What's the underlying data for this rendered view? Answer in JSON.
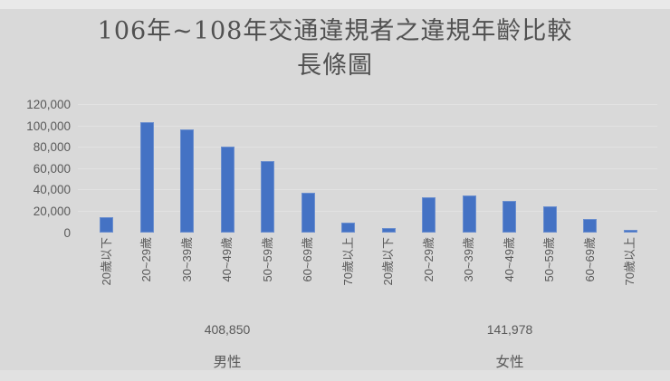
{
  "title": {
    "line1": "106年~108年交通違規者之違規年齡比較",
    "line2": "長條圖"
  },
  "colors": {
    "background": "#d9d9d9",
    "bar": "#4472c4",
    "text": "#595959",
    "gridline": "#e2e2e2"
  },
  "chart_data": {
    "type": "bar",
    "title": "106年~108年交通違規者之違規年齡比較 長條圖",
    "categories": [
      "20歲以下",
      "20~29歲",
      "30~39歲",
      "40~49歲",
      "50~59歲",
      "60~69歲",
      "70歲以上"
    ],
    "groups": [
      {
        "name": "男性",
        "total_label": "408,850",
        "values": [
          14550,
          103260,
          96860,
          80640,
          66970,
          37370,
          9200
        ]
      },
      {
        "name": "女性",
        "total_label": "141,978",
        "values": [
          4250,
          33150,
          35120,
          29490,
          24340,
          12860,
          2768
        ]
      }
    ],
    "ylim": [
      0,
      120000
    ],
    "y_tick_step": 20000,
    "y_tick_labels": [
      "0",
      "20,000",
      "40,000",
      "60,000",
      "80,000",
      "100,000",
      "120,000"
    ],
    "grid": true,
    "legend": false,
    "xlabel": "",
    "ylabel": ""
  }
}
